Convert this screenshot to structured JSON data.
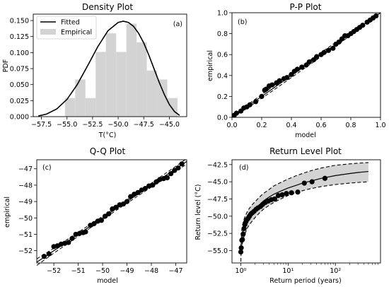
{
  "chart_data": [
    {
      "id": "density",
      "type": "bar",
      "title": "Density Plot",
      "tag": "(a)",
      "xlabel": "T($^\\circ$C)",
      "xlabel_display": "T(°C)",
      "ylabel": "PDF",
      "xlim": [
        -58.3,
        -43.3
      ],
      "ylim": [
        0,
        0.16
      ],
      "xticks": [
        -57.5,
        -55.0,
        -52.5,
        -50.0,
        -47.5,
        -45.0
      ],
      "xtick_labels": [
        "−57.5",
        "−55.0",
        "−52.5",
        "−50.0",
        "−47.5",
        "−45.0"
      ],
      "yticks": [
        0.0,
        0.025,
        0.05,
        0.075,
        0.1,
        0.125,
        0.15
      ],
      "ytick_labels": [
        "0.000",
        "0.025",
        "0.050",
        "0.075",
        "0.100",
        "0.125",
        "0.150"
      ],
      "legend": {
        "position": "top-left",
        "entries": [
          "Fitted",
          "Empirical"
        ]
      },
      "series": [
        {
          "name": "Empirical",
          "kind": "histogram",
          "color": "#d3d3d3",
          "bins": [
            {
              "x0": -55.2,
              "x1": -54.2,
              "value": 0.029
            },
            {
              "x0": -54.2,
              "x1": -53.2,
              "value": 0.058
            },
            {
              "x0": -53.2,
              "x1": -52.2,
              "value": 0.029
            },
            {
              "x0": -52.2,
              "x1": -51.2,
              "value": 0.101
            },
            {
              "x0": -51.2,
              "x1": -50.2,
              "value": 0.13
            },
            {
              "x0": -50.2,
              "x1": -49.2,
              "value": 0.101
            },
            {
              "x0": -49.2,
              "x1": -48.2,
              "value": 0.145
            },
            {
              "x0": -48.2,
              "x1": -47.2,
              "value": 0.116
            },
            {
              "x0": -47.2,
              "x1": -46.2,
              "value": 0.072
            },
            {
              "x0": -46.2,
              "x1": -45.2,
              "value": 0.058
            },
            {
              "x0": -45.2,
              "x1": -44.2,
              "value": 0.029
            }
          ]
        },
        {
          "name": "Fitted",
          "kind": "line",
          "color": "#000000",
          "x": [
            -57.8,
            -57.0,
            -56.0,
            -55.0,
            -54.0,
            -53.0,
            -52.0,
            -51.0,
            -50.0,
            -49.5,
            -49.0,
            -48.5,
            -48.0,
            -47.5,
            -47.0,
            -46.5,
            -46.0,
            -45.5,
            -45.0,
            -44.5,
            -44.0
          ],
          "y": [
            0.001,
            0.004,
            0.012,
            0.027,
            0.05,
            0.079,
            0.109,
            0.134,
            0.147,
            0.149,
            0.147,
            0.141,
            0.13,
            0.115,
            0.096,
            0.075,
            0.054,
            0.035,
            0.019,
            0.008,
            0.002
          ]
        }
      ]
    },
    {
      "id": "pp",
      "type": "scatter",
      "title": "P-P Plot",
      "tag": "(b)",
      "xlabel": "model",
      "ylabel": "empirical",
      "xlim": [
        0,
        1
      ],
      "ylim": [
        0,
        1
      ],
      "xticks": [
        0.0,
        0.2,
        0.4,
        0.6,
        0.8,
        1.0
      ],
      "xtick_labels": [
        "0.0",
        "0.2",
        "0.4",
        "0.6",
        "0.8",
        "1.0"
      ],
      "yticks": [
        0.0,
        0.2,
        0.4,
        0.6,
        0.8,
        1.0
      ],
      "ytick_labels": [
        "0.0",
        "0.2",
        "0.4",
        "0.6",
        "0.8",
        "1.0"
      ],
      "reference_line": {
        "x": [
          0,
          1
        ],
        "y": [
          0,
          1
        ]
      },
      "confidence_band": {
        "x": [
          0,
          0.1,
          0.2,
          0.3,
          0.4,
          0.5,
          0.6,
          0.7,
          0.8,
          0.9,
          1.0
        ],
        "lower": [
          0,
          0.085,
          0.182,
          0.28,
          0.38,
          0.48,
          0.58,
          0.682,
          0.785,
          0.89,
          1.0
        ],
        "upper": [
          0,
          0.115,
          0.218,
          0.32,
          0.42,
          0.52,
          0.62,
          0.718,
          0.815,
          0.91,
          1.0
        ]
      },
      "points": {
        "x": [
          0.015,
          0.03,
          0.06,
          0.08,
          0.1,
          0.12,
          0.16,
          0.2,
          0.22,
          0.23,
          0.25,
          0.27,
          0.3,
          0.32,
          0.35,
          0.37,
          0.4,
          0.42,
          0.44,
          0.47,
          0.5,
          0.52,
          0.55,
          0.57,
          0.6,
          0.62,
          0.65,
          0.68,
          0.7,
          0.72,
          0.74,
          0.76,
          0.78,
          0.8,
          0.82,
          0.84,
          0.86,
          0.88,
          0.91,
          0.93,
          0.95,
          0.97
        ],
        "y": [
          0.02,
          0.04,
          0.06,
          0.09,
          0.1,
          0.12,
          0.15,
          0.2,
          0.26,
          0.27,
          0.3,
          0.31,
          0.33,
          0.35,
          0.37,
          0.38,
          0.41,
          0.44,
          0.46,
          0.48,
          0.5,
          0.53,
          0.55,
          0.58,
          0.6,
          0.62,
          0.64,
          0.66,
          0.7,
          0.72,
          0.75,
          0.78,
          0.78,
          0.8,
          0.82,
          0.84,
          0.86,
          0.88,
          0.91,
          0.93,
          0.95,
          0.97
        ]
      }
    },
    {
      "id": "qq",
      "type": "scatter",
      "title": "Q-Q Plot",
      "tag": "(c)",
      "xlabel": "model",
      "ylabel": "empirical",
      "xlim": [
        -52.7,
        -46.55
      ],
      "ylim": [
        -52.75,
        -46.45
      ],
      "xticks": [
        -52,
        -51,
        -50,
        -49,
        -48,
        -47
      ],
      "xtick_labels": [
        "−52",
        "−51",
        "−50",
        "−49",
        "−48",
        "−47"
      ],
      "yticks": [
        -52,
        -51,
        -50,
        -49,
        -48,
        -47
      ],
      "ytick_labels": [
        "−52",
        "−51",
        "−50",
        "−49",
        "−48",
        "−47"
      ],
      "reference_line": {
        "x": [
          -52.7,
          -46.55
        ],
        "y": [
          -52.7,
          -46.55
        ]
      },
      "confidence_band": {
        "x": [
          -52.7,
          -52.0,
          -51.0,
          -50.0,
          -49.0,
          -48.0,
          -47.0,
          -46.55
        ],
        "lower": [
          -52.9,
          -52.15,
          -51.12,
          -50.1,
          -49.1,
          -48.12,
          -47.15,
          -46.72
        ],
        "upper": [
          -52.5,
          -51.85,
          -50.88,
          -49.9,
          -48.9,
          -47.88,
          -46.85,
          -46.38
        ]
      },
      "points": {
        "x": [
          -52.4,
          -52.2,
          -52.0,
          -51.85,
          -51.7,
          -51.55,
          -51.4,
          -51.25,
          -51.1,
          -50.95,
          -50.8,
          -50.7,
          -50.5,
          -50.35,
          -50.2,
          -50.05,
          -49.9,
          -49.75,
          -49.6,
          -49.45,
          -49.3,
          -49.15,
          -49.0,
          -48.85,
          -48.7,
          -48.55,
          -48.4,
          -48.25,
          -48.1,
          -47.95,
          -47.8,
          -47.65,
          -47.5,
          -47.35,
          -47.2,
          -47.05,
          -46.9,
          -46.75
        ],
        "y": [
          -52.35,
          -52.2,
          -51.75,
          -51.7,
          -51.6,
          -51.55,
          -51.5,
          -51.25,
          -51.0,
          -50.95,
          -50.9,
          -50.85,
          -50.45,
          -50.35,
          -50.2,
          -50.15,
          -49.9,
          -49.75,
          -49.45,
          -49.35,
          -49.2,
          -49.15,
          -49.0,
          -48.7,
          -48.55,
          -48.45,
          -48.3,
          -48.2,
          -48.05,
          -48.0,
          -47.8,
          -47.65,
          -47.6,
          -47.55,
          -47.3,
          -47.1,
          -46.95,
          -46.7
        ]
      }
    },
    {
      "id": "return",
      "type": "scatter",
      "title": "Return Level Plot",
      "tag": "(d)",
      "xlabel": "Return period (years)",
      "ylabel": "Return level ($^\\circ$C)",
      "ylabel_display": "Return level (°C)",
      "xscale": "log",
      "xlim": [
        0.65,
        900
      ],
      "ylim": [
        -56.8,
        -41.8
      ],
      "xticks": [
        1,
        10,
        100
      ],
      "xtick_labels": [
        "10⁰",
        "10¹",
        "10²"
      ],
      "yticks": [
        -55.0,
        -52.5,
        -50.0,
        -47.5,
        -45.0,
        -42.5
      ],
      "ytick_labels": [
        "−55.0",
        "−52.5",
        "−50.0",
        "−47.5",
        "−45.0",
        "−42.5"
      ],
      "fit": {
        "x": [
          1.001,
          1.01,
          1.05,
          1.1,
          1.2,
          1.4,
          1.7,
          2,
          2.5,
          3,
          4,
          5,
          7,
          10,
          15,
          20,
          30,
          50,
          100,
          200,
          300,
          500
        ],
        "central": [
          -55.5,
          -54.3,
          -53.0,
          -52.2,
          -51.3,
          -50.3,
          -49.5,
          -48.9,
          -48.3,
          -47.8,
          -47.2,
          -46.8,
          -46.35,
          -45.9,
          -45.5,
          -45.2,
          -44.9,
          -44.5,
          -44.1,
          -43.8,
          -43.65,
          -43.5
        ],
        "lower": [
          -56.6,
          -55.6,
          -54.4,
          -53.6,
          -52.7,
          -51.6,
          -50.8,
          -50.2,
          -49.5,
          -49.0,
          -48.4,
          -48.0,
          -47.5,
          -47.0,
          -46.6,
          -46.3,
          -46.0,
          -45.7,
          -45.4,
          -45.2,
          -45.1,
          -45.0
        ],
        "upper": [
          -54.6,
          -53.3,
          -51.9,
          -51.1,
          -50.2,
          -49.2,
          -48.4,
          -47.9,
          -47.2,
          -46.7,
          -46.1,
          -45.6,
          -45.1,
          -44.6,
          -44.1,
          -43.8,
          -43.4,
          -43.0,
          -42.6,
          -42.4,
          -42.3,
          -42.2
        ]
      },
      "points": {
        "x": [
          1.0,
          1.02,
          1.05,
          1.08,
          1.12,
          1.17,
          1.22,
          1.28,
          1.35,
          1.43,
          1.52,
          1.62,
          1.75,
          1.9,
          2.1,
          2.3,
          2.6,
          2.9,
          3.3,
          3.8,
          4.4,
          5.2,
          6.2,
          7.5,
          9.2,
          11.8,
          16,
          22,
          32,
          60
        ],
        "y": [
          -55.2,
          -54.6,
          -53.5,
          -53.4,
          -52.6,
          -51.8,
          -51.2,
          -50.8,
          -50.5,
          -50.3,
          -50.0,
          -49.7,
          -49.5,
          -49.3,
          -49.0,
          -48.8,
          -48.6,
          -48.3,
          -48.0,
          -47.8,
          -47.6,
          -47.5,
          -47.0,
          -46.9,
          -46.7,
          -46.6,
          -46.5,
          -45.2,
          -45.0,
          -44.5
        ]
      }
    }
  ]
}
